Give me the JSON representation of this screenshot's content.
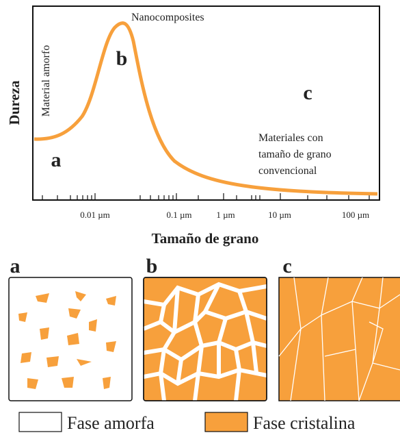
{
  "graph": {
    "y_axis_label": "Dureza",
    "x_axis_label": "Tamaño de grano",
    "x_tick_labels": [
      "0.01 µm",
      "0.1 µm",
      "1 µm",
      "10 µm",
      "100 µm"
    ],
    "annotations": {
      "amorphous": "Material amorfo",
      "nanocomposites": "Nanocomposites",
      "conventional": [
        "Materiales con",
        "tamaño de grano",
        "convencional"
      ]
    },
    "region_labels": [
      "a",
      "b",
      "c"
    ]
  },
  "panels": [
    {
      "label": "a"
    },
    {
      "label": "b"
    },
    {
      "label": "c"
    }
  ],
  "legend": [
    {
      "label": "Fase amorfa"
    },
    {
      "label": "Fase cristalina"
    }
  ]
}
